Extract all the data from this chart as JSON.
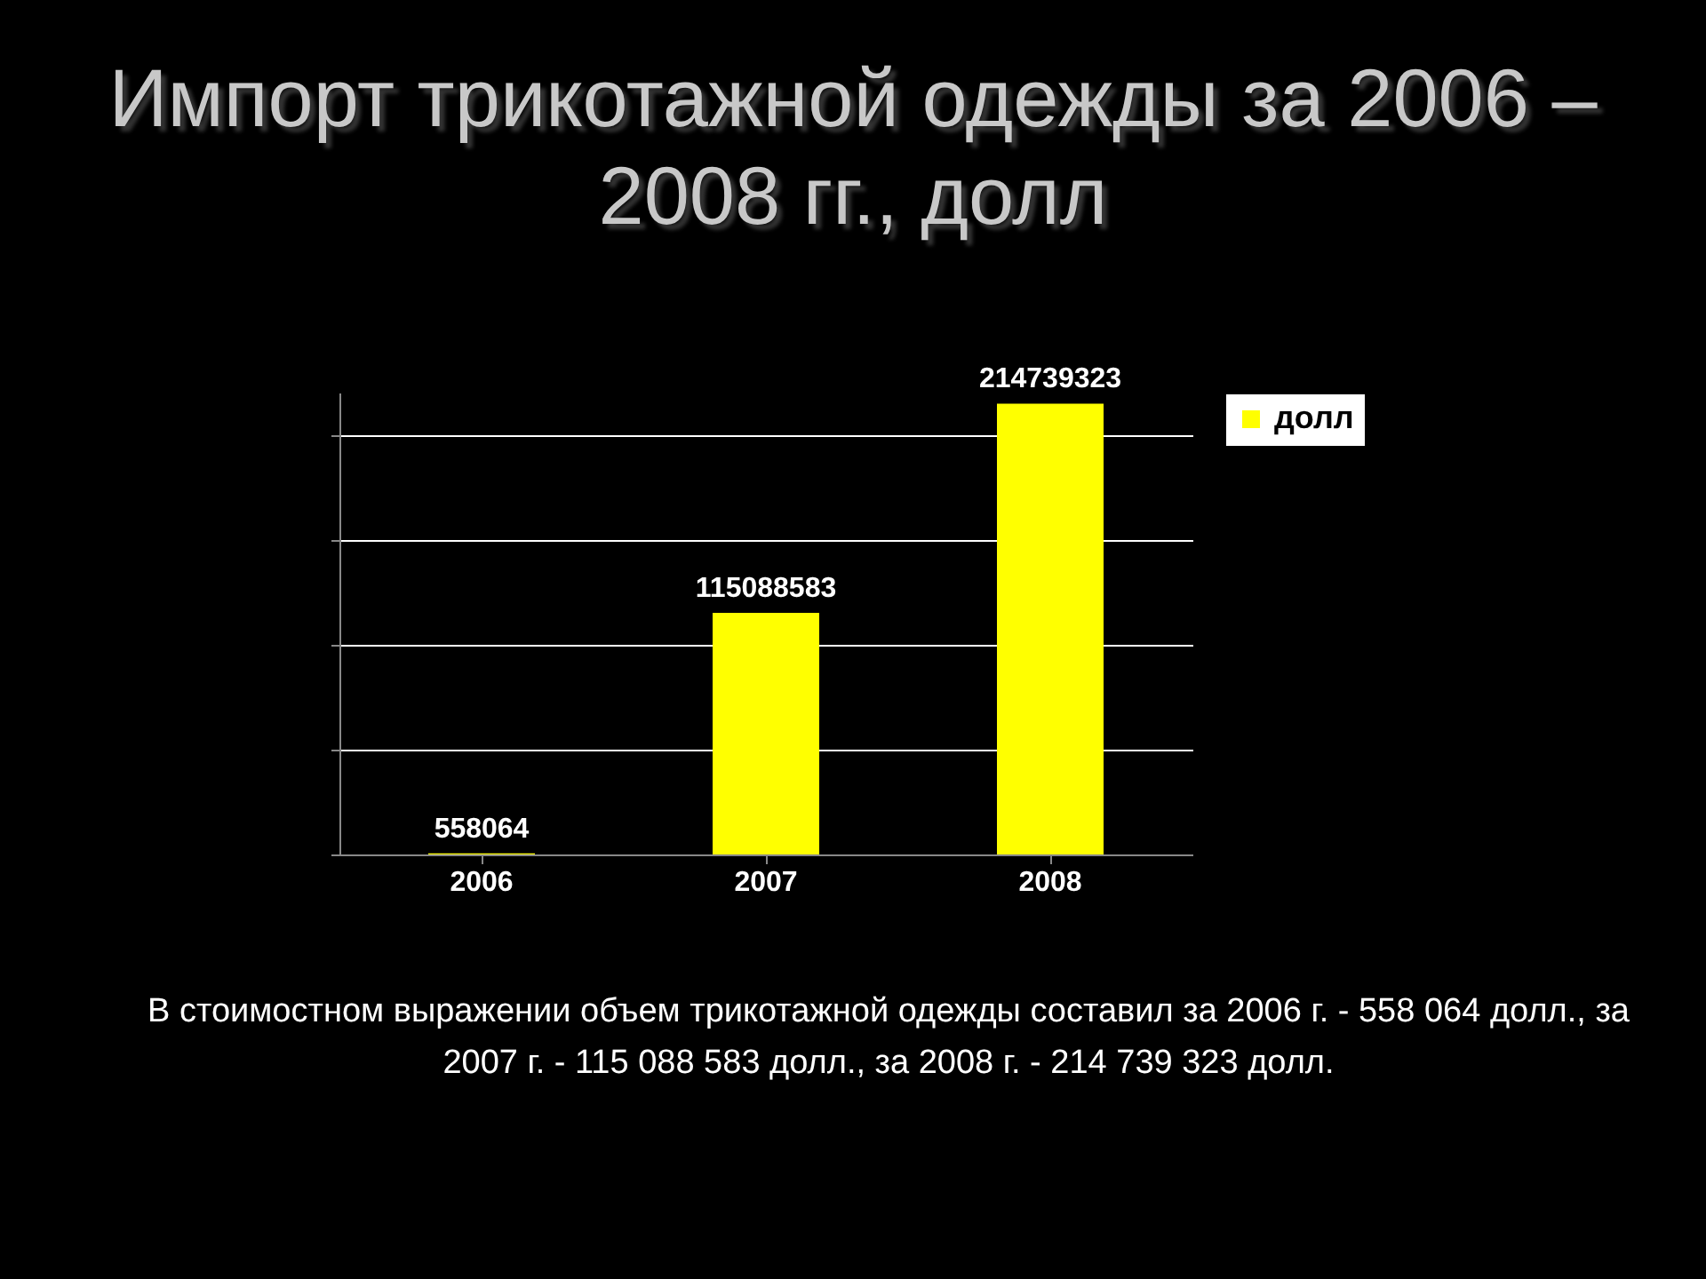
{
  "chart_data": {
    "type": "bar",
    "title": "Импорт трикотажной одежды за 2006 – 2008 гг., долл",
    "categories": [
      "2006",
      "2007",
      "2008"
    ],
    "series": [
      {
        "name": "долл",
        "color": "#ffff00",
        "values": [
          558064,
          115088583,
          214739323
        ]
      }
    ],
    "data_labels": true,
    "legend": "right",
    "grid": "y",
    "tick_labels": "x",
    "annotations": [
      "В стоимостном выражении объем трикотажной одежды составил за 2006 г. - 558 064 долл., за 2007 г. - 115 088 583 долл., за 2008 г. - 214 739 323 долл."
    ]
  }
}
